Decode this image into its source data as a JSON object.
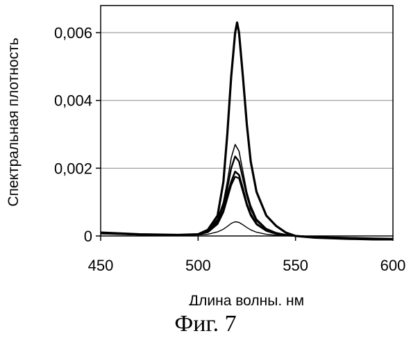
{
  "figure": {
    "caption": "Фиг. 7"
  },
  "chart_data": {
    "type": "line",
    "title": "",
    "xlabel": "Длина волны, нм",
    "ylabel": "Спектральная плотность",
    "xlim": [
      450,
      600
    ],
    "ylim": [
      0,
      0.0068
    ],
    "x_ticks": [
      450,
      500,
      550,
      600
    ],
    "x_tick_labels": [
      "450",
      "500",
      "550",
      "600"
    ],
    "y_ticks": [
      0,
      0.002,
      0.004,
      0.006
    ],
    "y_tick_labels": [
      "0",
      "0,002",
      "0,004",
      "0,006"
    ],
    "grid": "horizontal",
    "legend": "none",
    "line_color": "#000000",
    "series": [
      {
        "peak_x": 520,
        "peak_y": 0.0063,
        "x": [
          450,
          470,
          490,
          500,
          505,
          510,
          513,
          515,
          517,
          519,
          520,
          521,
          523,
          525,
          527,
          530,
          535,
          540,
          545,
          550,
          560,
          575,
          590,
          600
        ],
        "y": [
          0.0001,
          5e-05,
          3e-05,
          5e-05,
          0.00018,
          0.0006,
          0.0016,
          0.003,
          0.0047,
          0.006,
          0.0063,
          0.006,
          0.0047,
          0.0033,
          0.0022,
          0.0013,
          0.0006,
          0.0003,
          0.0001,
          0.0,
          -5e-05,
          -8e-05,
          -0.0001,
          -0.00012
        ]
      },
      {
        "peak_x": 519,
        "peak_y": 0.0027,
        "x": [
          450,
          470,
          490,
          500,
          505,
          510,
          513,
          515,
          517,
          519,
          521,
          523,
          525,
          527,
          530,
          535,
          540,
          545,
          550,
          560,
          575,
          590,
          600
        ],
        "y": [
          8e-05,
          4e-05,
          3e-05,
          5e-05,
          0.00015,
          0.0005,
          0.001,
          0.0016,
          0.0023,
          0.0027,
          0.0025,
          0.0019,
          0.0013,
          0.0009,
          0.0005,
          0.00022,
          0.0001,
          4e-05,
          0.0,
          -3e-05,
          -6e-05,
          -8e-05,
          -0.0001
        ]
      },
      {
        "peak_x": 519,
        "peak_y": 0.00235,
        "x": [
          450,
          470,
          490,
          500,
          505,
          510,
          513,
          515,
          517,
          519,
          521,
          523,
          525,
          527,
          530,
          535,
          540,
          545,
          550,
          560,
          575,
          590,
          600
        ],
        "y": [
          8e-05,
          4e-05,
          3e-05,
          5e-05,
          0.00014,
          0.00045,
          0.0009,
          0.0014,
          0.002,
          0.00235,
          0.0022,
          0.0017,
          0.0012,
          0.0008,
          0.00045,
          0.0002,
          9e-05,
          3e-05,
          0.0,
          -3e-05,
          -6e-05,
          -8e-05,
          -0.0001
        ]
      },
      {
        "peak_x": 519,
        "peak_y": 0.0019,
        "x": [
          450,
          470,
          490,
          500,
          505,
          510,
          513,
          515,
          517,
          519,
          521,
          523,
          525,
          527,
          530,
          535,
          540,
          545,
          550,
          560,
          575,
          590,
          600
        ],
        "y": [
          8e-05,
          4e-05,
          3e-05,
          5e-05,
          0.00012,
          0.00038,
          0.00075,
          0.0012,
          0.0016,
          0.0019,
          0.0018,
          0.0014,
          0.00095,
          0.00065,
          0.00036,
          0.00016,
          7e-05,
          2e-05,
          0.0,
          -3e-05,
          -6e-05,
          -8e-05,
          -0.0001
        ]
      },
      {
        "peak_x": 519,
        "peak_y": 0.00175,
        "x": [
          450,
          470,
          490,
          500,
          505,
          510,
          513,
          515,
          517,
          519,
          521,
          523,
          525,
          527,
          530,
          535,
          540,
          545,
          550,
          560,
          575,
          590,
          600
        ],
        "y": [
          8e-05,
          4e-05,
          3e-05,
          5e-05,
          0.00011,
          0.00035,
          0.0007,
          0.0011,
          0.0015,
          0.00175,
          0.0017,
          0.0013,
          0.0009,
          0.0006,
          0.00034,
          0.00015,
          6e-05,
          2e-05,
          0.0,
          -3e-05,
          -6e-05,
          -8e-05,
          -0.0001
        ]
      },
      {
        "peak_x": 519,
        "peak_y": 0.00042,
        "x": [
          450,
          470,
          490,
          500,
          505,
          510,
          513,
          515,
          517,
          519,
          521,
          523,
          525,
          527,
          530,
          535,
          540,
          545,
          550,
          560,
          575,
          590,
          600
        ],
        "y": [
          6e-05,
          3e-05,
          2e-05,
          3e-05,
          5e-05,
          0.00012,
          0.0002,
          0.00028,
          0.00037,
          0.00042,
          0.0004,
          0.00033,
          0.00025,
          0.00018,
          0.00011,
          5e-05,
          2e-05,
          1e-05,
          0.0,
          -2e-05,
          -4e-05,
          -6e-05,
          -7e-05
        ]
      }
    ]
  }
}
